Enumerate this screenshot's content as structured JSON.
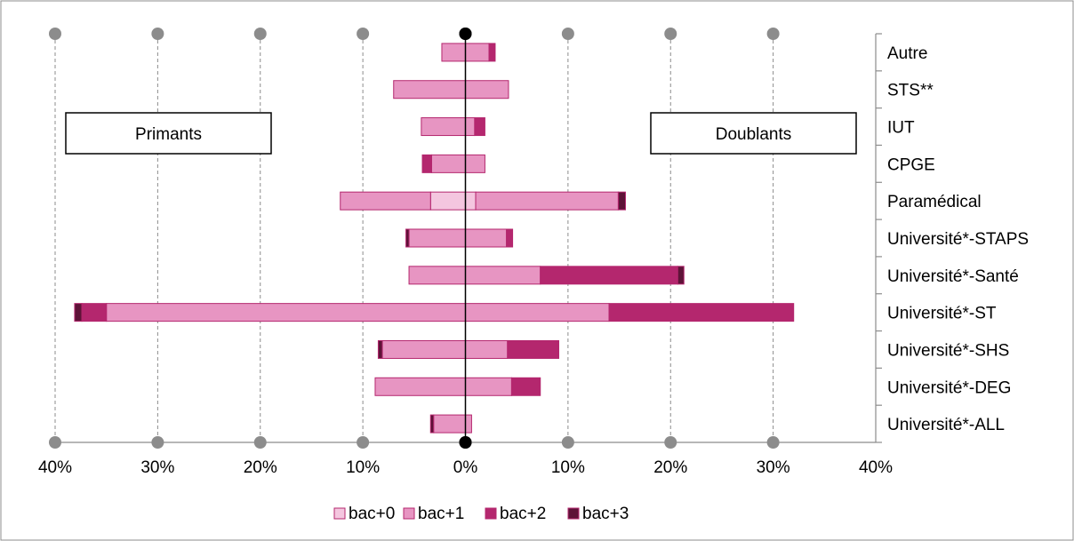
{
  "chart_data": {
    "type": "bar",
    "orientation": "horizontal",
    "stacked": true,
    "diverging": true,
    "categories": [
      "Autre",
      "STS**",
      "IUT",
      "CPGE",
      "Paramédical",
      "Université*-STAPS",
      "Université*-Santé",
      "Université*-ST",
      "Université*-SHS",
      "Université*-DEG",
      "Université*-ALL"
    ],
    "groups": [
      "Primants",
      "Doublants"
    ],
    "series": [
      {
        "name": "bac+0",
        "color": "#f4c6df",
        "primants": [
          0,
          0,
          0,
          0,
          3.4,
          0,
          0,
          0,
          0,
          0,
          0
        ],
        "doublants": [
          0,
          0,
          0,
          0,
          1,
          0,
          0,
          0,
          0,
          0,
          0
        ]
      },
      {
        "name": "bac+1",
        "color": "#e795c2",
        "primants": [
          2.3,
          7,
          4.3,
          3.3,
          8.8,
          5.5,
          5.5,
          35,
          8.1,
          8.8,
          3.1
        ],
        "doublants": [
          2.3,
          4.2,
          0.9,
          1.9,
          13.9,
          4,
          7.3,
          14,
          4.1,
          4.5,
          0.6
        ]
      },
      {
        "name": "bac+2",
        "color": "#b4276e",
        "primants": [
          0,
          0,
          0,
          0.9,
          0,
          0,
          0,
          2.4,
          0,
          0,
          0
        ],
        "doublants": [
          0.6,
          0,
          1,
          0,
          0,
          0.6,
          13.4,
          18,
          5,
          2.8,
          0
        ]
      },
      {
        "name": "bac+3",
        "color": "#5e1338",
        "primants": [
          0,
          0,
          0,
          0,
          0,
          0.3,
          0,
          0.7,
          0.4,
          0,
          0.3
        ],
        "doublants": [
          0,
          0,
          0,
          0,
          0.7,
          0,
          0.6,
          0,
          0,
          0,
          0
        ]
      }
    ],
    "xlim": [
      -40,
      40
    ],
    "x_ticks": [
      -40,
      -30,
      -20,
      -10,
      0,
      10,
      20,
      30,
      40
    ],
    "x_tick_labels": [
      "40%",
      "30%",
      "20%",
      "10%",
      "0%",
      "10%",
      "20%",
      "30%",
      "40%"
    ],
    "grid": true,
    "legend_position": "bottom",
    "annotations": [
      "Primants",
      "Doublants"
    ]
  }
}
